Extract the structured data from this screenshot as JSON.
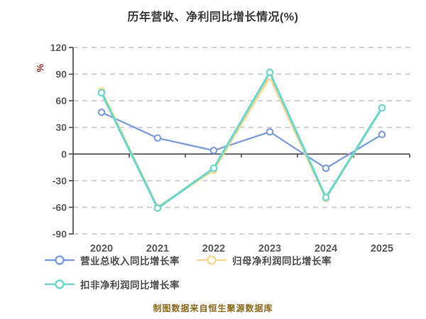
{
  "title": "历年营收、净利同比增长情况(%)",
  "y_axis_unit_label": "%",
  "footer_note": "制图数据来自恒生聚源数据库",
  "colors": {
    "revenue_line": "#7e9fd8",
    "net_profit_line": "#f5d78f",
    "non_gaap_line": "#70d6cd",
    "gridline": "#cbcbcb",
    "axis": "#474747",
    "title_text": "#3a3a3a",
    "tick_text": "#5a5a5a",
    "legend_text": "#4c4c4c",
    "unit_label_text": "#8e1f1f",
    "footer_text": "#8a681c",
    "marker_fill": "#ffffff"
  },
  "chart_data": {
    "type": "line",
    "title": "历年营收、净利同比增长情况(%)",
    "x_labels": [
      "2020",
      "2021",
      "2022",
      "2023",
      "2024",
      "2025"
    ],
    "series": [
      {
        "name": "营业总收入同比增长率",
        "color_key": "revenue_line",
        "values": [
          47,
          18,
          4,
          25,
          -16,
          22
        ]
      },
      {
        "name": "归母净利润同比增长率",
        "color_key": "net_profit_line",
        "values": [
          71,
          -60,
          -18,
          87,
          -50,
          52
        ]
      },
      {
        "name": "扣非净利润同比增长率",
        "color_key": "non_gaap_line",
        "values": [
          69,
          -61,
          -16,
          92,
          -49,
          52
        ]
      }
    ],
    "y_ticks": [
      120,
      90,
      60,
      30,
      0,
      -30,
      -60,
      -90
    ],
    "ylim": [
      -90,
      120
    ],
    "y_unit": "%",
    "grid": "horizontal-dashed",
    "legend_position": "bottom-left",
    "marker": "circle-white-fill"
  }
}
